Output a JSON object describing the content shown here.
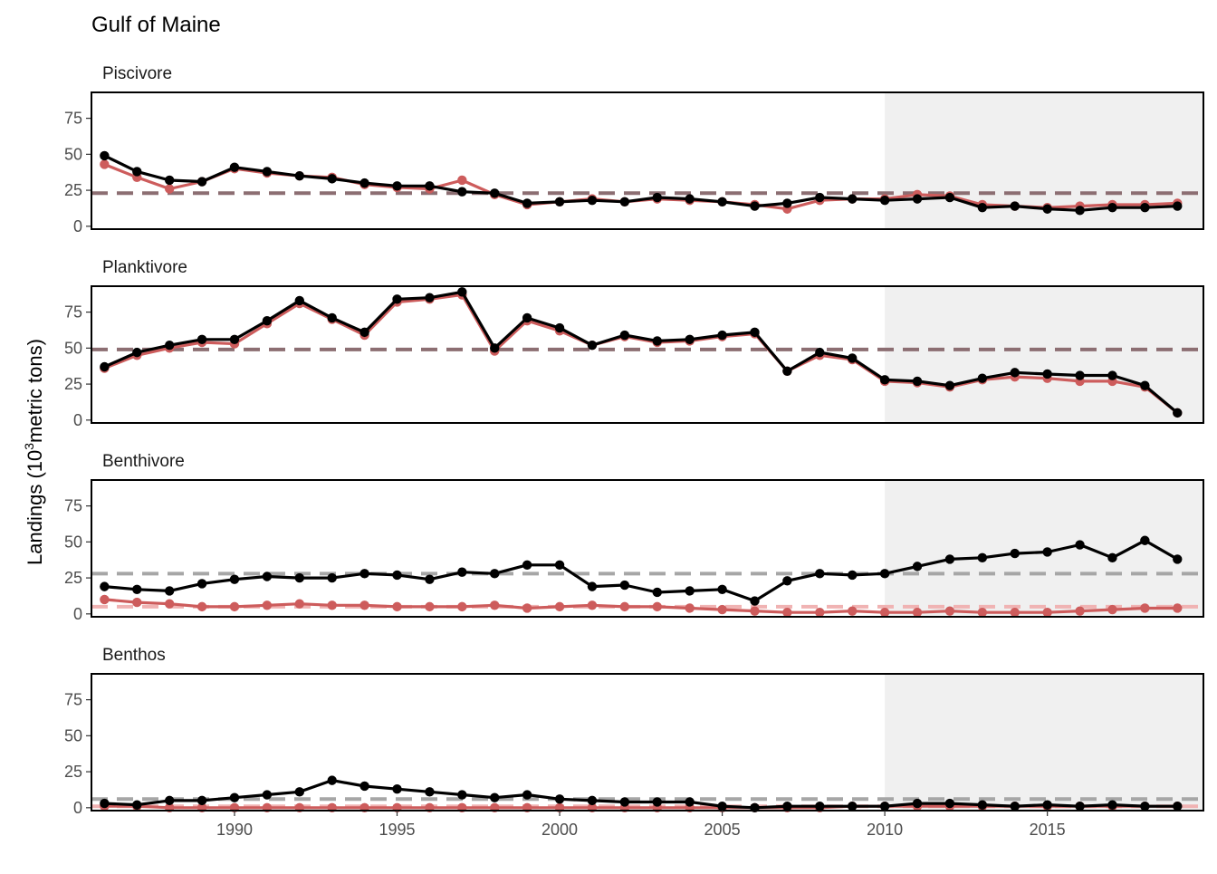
{
  "chart_data": {
    "type": "line",
    "title": "Gulf of Maine",
    "ylabel": {
      "prefix": "Landings (10",
      "superscript": "3",
      "suffix": "metric tons)"
    },
    "xlim": [
      1985.6,
      2019.8
    ],
    "ylim": [
      -2,
      93
    ],
    "x_ticks": [
      1990,
      1995,
      2000,
      2005,
      2010,
      2015
    ],
    "y_ticks": [
      0,
      25,
      50,
      75
    ],
    "highlight_range": [
      2010,
      2019.8
    ],
    "colors": {
      "series_a": "#000000",
      "series_b": "#cd5c5c",
      "highlight": "#f0f0f0"
    },
    "years": [
      1986,
      1987,
      1988,
      1989,
      1990,
      1991,
      1992,
      1993,
      1994,
      1995,
      1996,
      1997,
      1998,
      1999,
      2000,
      2001,
      2002,
      2003,
      2004,
      2005,
      2006,
      2007,
      2008,
      2009,
      2010,
      2011,
      2012,
      2013,
      2014,
      2015,
      2016,
      2017,
      2018,
      2019
    ],
    "panels": [
      {
        "label": "Piscivore",
        "mean_lines": [
          {
            "value": 23,
            "color": "#8c6e72"
          }
        ],
        "series_b": [
          43,
          34,
          26,
          31,
          40,
          37,
          35,
          34,
          29,
          27,
          26,
          32,
          22,
          15,
          17,
          19,
          17,
          19,
          18,
          17,
          15,
          12,
          18,
          19,
          19,
          22,
          21,
          15,
          14,
          13,
          14,
          15,
          15,
          16
        ],
        "series_a": [
          49,
          38,
          32,
          31,
          41,
          38,
          35,
          33,
          30,
          28,
          28,
          24,
          23,
          16,
          17,
          18,
          17,
          20,
          19,
          17,
          14,
          16,
          20,
          19,
          18,
          19,
          20,
          13,
          14,
          12,
          11,
          13,
          13,
          14
        ]
      },
      {
        "label": "Planktivore",
        "mean_lines": [
          {
            "value": 49,
            "color": "#8c6e72"
          }
        ],
        "series_b": [
          36,
          45,
          50,
          54,
          53,
          67,
          81,
          70,
          59,
          82,
          84,
          87,
          48,
          69,
          62,
          52,
          58,
          54,
          55,
          58,
          60,
          34,
          45,
          42,
          27,
          26,
          23,
          28,
          30,
          29,
          27,
          27,
          23,
          5
        ],
        "series_a": [
          37,
          47,
          52,
          56,
          56,
          69,
          83,
          71,
          61,
          84,
          85,
          89,
          50,
          71,
          64,
          52,
          59,
          55,
          56,
          59,
          61,
          34,
          47,
          43,
          28,
          27,
          24,
          29,
          33,
          32,
          31,
          31,
          24,
          5
        ]
      },
      {
        "label": "Benthivore",
        "mean_lines": [
          {
            "value": 28,
            "color": "#a6a6a6"
          },
          {
            "value": 5,
            "color": "#f0b3b3"
          }
        ],
        "series_b": [
          10,
          8,
          7,
          5,
          5,
          6,
          7,
          6,
          6,
          5,
          5,
          5,
          6,
          4,
          5,
          6,
          5,
          5,
          4,
          3,
          2,
          1,
          1,
          2,
          1,
          1,
          2,
          1,
          1,
          1,
          2,
          3,
          4,
          4
        ],
        "series_a": [
          19,
          17,
          16,
          21,
          24,
          26,
          25,
          25,
          28,
          27,
          24,
          29,
          28,
          34,
          34,
          19,
          20,
          15,
          16,
          17,
          9,
          23,
          28,
          27,
          28,
          33,
          38,
          39,
          42,
          43,
          48,
          39,
          51,
          38
        ]
      },
      {
        "label": "Benthos",
        "mean_lines": [
          {
            "value": 6,
            "color": "#a6a6a6"
          },
          {
            "value": 1,
            "color": "#f0b3b3"
          }
        ],
        "series_b": [
          1,
          1,
          0,
          0,
          0,
          0,
          0,
          0,
          0,
          0,
          0,
          0,
          0,
          0,
          0,
          0,
          0,
          0,
          0,
          0,
          0,
          0,
          0,
          1,
          1,
          1,
          1,
          1,
          1,
          1,
          1,
          1,
          1,
          1
        ],
        "series_a": [
          3,
          2,
          5,
          5,
          7,
          9,
          11,
          19,
          15,
          13,
          11,
          9,
          7,
          9,
          6,
          5,
          4,
          4,
          4,
          1,
          0,
          1,
          1,
          1,
          1,
          3,
          3,
          2,
          1,
          2,
          1,
          2,
          1,
          1
        ]
      }
    ]
  }
}
